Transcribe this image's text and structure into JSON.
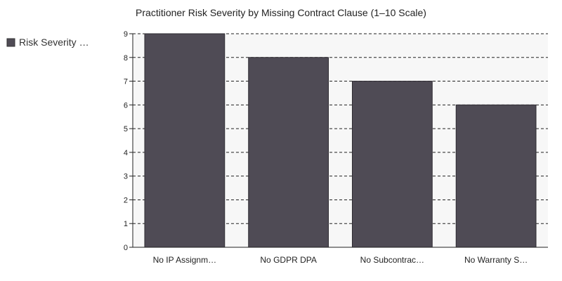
{
  "chart_data": {
    "type": "bar",
    "title": "Practitioner Risk Severity by Missing Contract Clause (1–10 Scale)",
    "categories": [
      "No IP Assignm…",
      "No GDPR DPA",
      "No Subcontrac…",
      "No Warranty S…"
    ],
    "series": [
      {
        "name": "Risk Severity …",
        "values": [
          9,
          8,
          7,
          6
        ],
        "color": "#4f4b55"
      }
    ],
    "yticks": [
      0,
      1,
      2,
      3,
      4,
      5,
      6,
      7,
      8,
      9
    ],
    "ylim": [
      0,
      9
    ],
    "grid": true,
    "legend_position": "left"
  }
}
